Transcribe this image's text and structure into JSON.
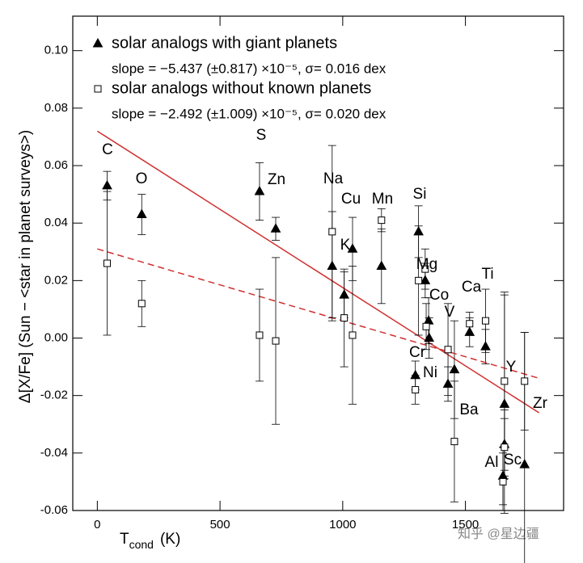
{
  "chart_data": {
    "type": "scatter",
    "xlabel": {
      "main": "T",
      "sub": "cond",
      "unit": "(K)"
    },
    "ylabel": "Δ[X/Fe] (Sun − <star in planet surveys>)",
    "xlim": [
      -100,
      1900
    ],
    "ylim": [
      -0.06,
      0.112
    ],
    "xticks": [
      0,
      500,
      1000,
      1500
    ],
    "yticks": [
      {
        "value": -0.06,
        "label": "-0.06"
      },
      {
        "value": -0.04,
        "label": "-0.04"
      },
      {
        "value": -0.02,
        "label": "-0.02"
      },
      {
        "value": 0,
        "label": "0.00"
      },
      {
        "value": 0.02,
        "label": "0.02"
      },
      {
        "value": 0.04,
        "label": "0.04"
      },
      {
        "value": 0.06,
        "label": "0.06"
      },
      {
        "value": 0.08,
        "label": "0.08"
      },
      {
        "value": 0.1,
        "label": "0.10"
      }
    ],
    "series": [
      {
        "name": "solar analogs with giant planets",
        "note": "slope = −5.437 (±0.817) ×10⁻⁵, σ= 0.016 dex",
        "marker": "triangle",
        "color": "#000000",
        "x": [
          40,
          181,
          661,
          727,
          957,
          1006,
          1040,
          1158,
          1309,
          1336,
          1350,
          1352,
          1296,
          1429,
          1455,
          1517,
          1582,
          1659,
          1659,
          1653,
          1741
        ],
        "y": [
          0.053,
          0.043,
          0.051,
          0.038,
          0.025,
          0.015,
          0.031,
          0.025,
          0.037,
          0.02,
          0.006,
          0,
          -0.013,
          -0.016,
          -0.011,
          0.002,
          -0.003,
          -0.023,
          -0.037,
          -0.048,
          -0.044
        ],
        "err": [
          0.005,
          0.007,
          0.01,
          0.004,
          0.019,
          0.008,
          0.011,
          0.013,
          0.009,
          0.006,
          0.008,
          0.007,
          0.005,
          0.006,
          0.017,
          0.005,
          0.006,
          0.038,
          0.012,
          0.01,
          0.046
        ],
        "fit": {
          "x": [
            0,
            1800
          ],
          "y": [
            0.072,
            -0.026
          ],
          "style": "solid",
          "color": "#d03030"
        }
      },
      {
        "name": "solar analogs without known planets",
        "note": "slope = −2.492 (±1.009) ×10⁻⁵, σ= 0.020 dex",
        "marker": "square",
        "color": "#000000",
        "x": [
          40,
          181,
          661,
          727,
          957,
          1006,
          1040,
          1158,
          1309,
          1336,
          1340,
          1296,
          1429,
          1455,
          1517,
          1582,
          1659,
          1659,
          1653,
          1741
        ],
        "y": [
          0.026,
          0.012,
          0.001,
          -0.001,
          0.037,
          0.007,
          0.001,
          0.041,
          0.02,
          0.024,
          0.004,
          -0.018,
          -0.004,
          -0.036,
          0.005,
          0.006,
          -0.015,
          -0.038,
          -0.05,
          -0.015
        ],
        "err": [
          0.025,
          0.008,
          0.016,
          0.029,
          0.03,
          0.017,
          0.024,
          0.004,
          0.019,
          0.007,
          0.008,
          0.005,
          0.016,
          0.021,
          0.004,
          0.011,
          0.031,
          0.01,
          0.01,
          0.017
        ],
        "fit": {
          "x": [
            0,
            1800
          ],
          "y": [
            0.031,
            -0.014
          ],
          "style": "dashed",
          "color": "#d03030"
        }
      }
    ],
    "annotations": [
      "C",
      "O",
      "S",
      "Zn",
      "Na",
      "Cu",
      "Mn",
      "Si",
      "K",
      "Mg",
      "Co",
      "Ca",
      "Ti",
      "V",
      "Cr",
      "Ni",
      "Ba",
      "Y",
      "Zr",
      "Al",
      "Sc"
    ],
    "watermark": "知乎 @星边疆"
  }
}
